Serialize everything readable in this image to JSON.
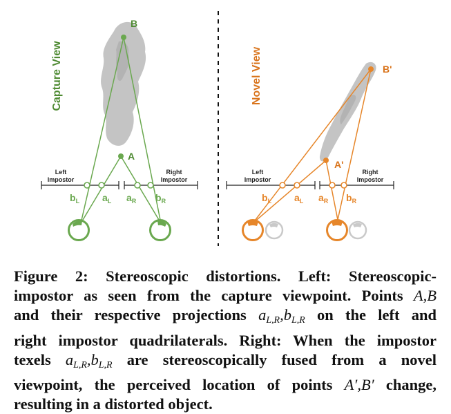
{
  "colors": {
    "capture": "#6aa84f",
    "capture_text": "#4e8a32",
    "novel": "#e6862a",
    "novel_text": "#d9731a",
    "silhouette": "#c4c4c4",
    "ghost_eye": "#c9c9c9",
    "divider": "#111111"
  },
  "left_panel": {
    "title": "Capture View",
    "point_a": "A",
    "point_b": "B",
    "left_impostor_line1": "Left",
    "left_impostor_line2": "Impostor",
    "right_impostor_line1": "Right",
    "right_impostor_line2": "Impostor",
    "b_l": "b",
    "b_l_sub": "L",
    "a_l": "a",
    "a_l_sub": "L",
    "a_r": "a",
    "a_r_sub": "R",
    "b_r": "b",
    "b_r_sub": "R"
  },
  "right_panel": {
    "title": "Novel View",
    "point_a": "A'",
    "point_b": "B'",
    "left_impostor_line1": "Left",
    "left_impostor_line2": "Impostor",
    "right_impostor_line1": "Right",
    "right_impostor_line2": "Impostor",
    "b_l": "b",
    "b_l_sub": "L",
    "a_l": "a",
    "a_l_sub": "L",
    "a_r": "a",
    "a_r_sub": "R",
    "b_r": "b",
    "b_r_sub": "R"
  },
  "caption": {
    "label": "Figure 2:",
    "l1_text": "Stereoscopic distortions. Left: Stereoscopic-",
    "l2_text": "impostor as seen from the capture viewpoint. Points",
    "pt_a": "A",
    "comma": ",",
    "pt_b": "B",
    "l3_pre": "and their respective projections",
    "a_sym": "a",
    "lr_sub": "L,R",
    "b_sym": "b",
    "l3_post": "on the left and",
    "l4_text": "right impostor quadrilaterals. Right: When the impostor",
    "l5_pre": "texels",
    "l5_post": "are stereoscopically fused from a novel",
    "l6_pre": "viewpoint, the perceived location of points",
    "pt_a2": "A′",
    "pt_b2": "B′",
    "l6_post": "change,",
    "l7_text": "resulting in a distorted object."
  }
}
